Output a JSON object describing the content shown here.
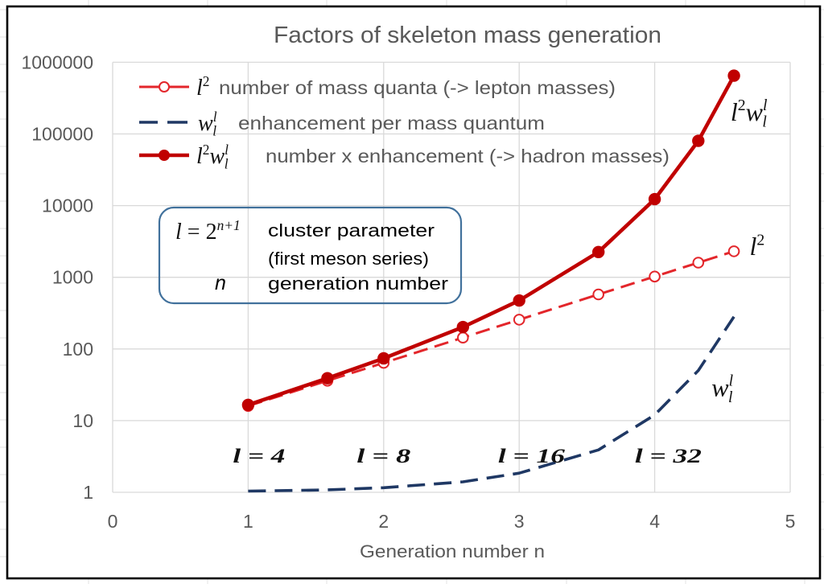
{
  "chart_data": {
    "type": "line",
    "title": "Factors of skeleton mass generation",
    "xlabel": "Generation number n",
    "ylabel": "",
    "xlim": [
      0,
      5
    ],
    "ylim": [
      1,
      1000000
    ],
    "yscale": "log",
    "grid": true,
    "x_ticks": [
      0,
      1,
      2,
      3,
      4,
      5
    ],
    "x_tick_labels": [
      "0",
      "1",
      "2",
      "3",
      "4",
      "5"
    ],
    "y_ticks": [
      1,
      10,
      100,
      1000,
      10000,
      100000,
      1000000
    ],
    "y_tick_labels": [
      "1",
      "10",
      "100",
      "1000",
      "10000",
      "100000",
      "1000000"
    ],
    "x": [
      1,
      1.585,
      2,
      2.585,
      3,
      3.585,
      4,
      4.322,
      4.585
    ],
    "series": [
      {
        "id": "l2",
        "name": "l^2",
        "description": "number of mass quanta (-> lepton masses)",
        "symbol": [
          {
            "t": "l",
            "f": "i"
          },
          {
            "t": "2",
            "p": "sup"
          }
        ],
        "values": [
          16,
          36,
          64,
          144,
          256,
          576,
          1024,
          1600,
          2304
        ],
        "color": "#e3262b",
        "line": "dashed",
        "marker": "open-circle",
        "end_label_at": {
          "x": 4.7,
          "y": 2040
        }
      },
      {
        "id": "w",
        "name": "w_l^l",
        "description": "enhancement per mass quantum",
        "symbol": [
          {
            "t": "w",
            "f": "i"
          },
          {
            "t": "l",
            "p": "sup",
            "f": "i"
          },
          {
            "t": "l",
            "p": "sub",
            "f": "i"
          }
        ],
        "values": [
          1.04,
          1.08,
          1.16,
          1.4,
          1.85,
          3.9,
          12,
          50,
          282
        ],
        "color": "#1f3864",
        "line": "dashed",
        "marker": "none",
        "end_label_at": {
          "x": 4.42,
          "y": 22
        }
      },
      {
        "id": "l2w",
        "name": "l^2 w_l^l",
        "description": "number x enhancement (-> hadron masses)",
        "symbol": [
          {
            "t": "l",
            "f": "i"
          },
          {
            "t": "2",
            "p": "sup"
          },
          {
            "t": "w",
            "f": "i"
          },
          {
            "t": "l",
            "p": "sup",
            "f": "i"
          },
          {
            "t": "l",
            "p": "sub",
            "f": "i"
          }
        ],
        "values": [
          16.6,
          39,
          74,
          202,
          474,
          2250,
          12300,
          80000,
          650000
        ],
        "color": "#c00000",
        "line": "solid",
        "marker": "filled-circle",
        "end_label_at": {
          "x": 4.56,
          "y": 153000
        }
      }
    ],
    "legend": {
      "position": "top-left"
    },
    "annotations": [
      {
        "text": "l = 4",
        "x": 1.08,
        "y": 3.2
      },
      {
        "text": "l = 8",
        "x": 2.0,
        "y": 3.2
      },
      {
        "text": "l = 16",
        "x": 3.09,
        "y": 3.2
      },
      {
        "text": "l = 32",
        "x": 4.1,
        "y": 3.2
      }
    ]
  },
  "info_box": {
    "formula": [
      {
        "t": "l",
        "f": "i"
      },
      {
        "t": " = "
      },
      {
        "t": "2"
      },
      {
        "t": "n+1",
        "p": "sup",
        "f": "i"
      }
    ],
    "formula_desc": "cluster parameter",
    "formula_note": "(first meson series)",
    "n_symbol": "n",
    "n_desc": "generation number"
  },
  "colors": {
    "frame": "#000000",
    "gridline": "#d9d9d9",
    "axis_text": "#595959",
    "info_box_border": "#41719c"
  }
}
